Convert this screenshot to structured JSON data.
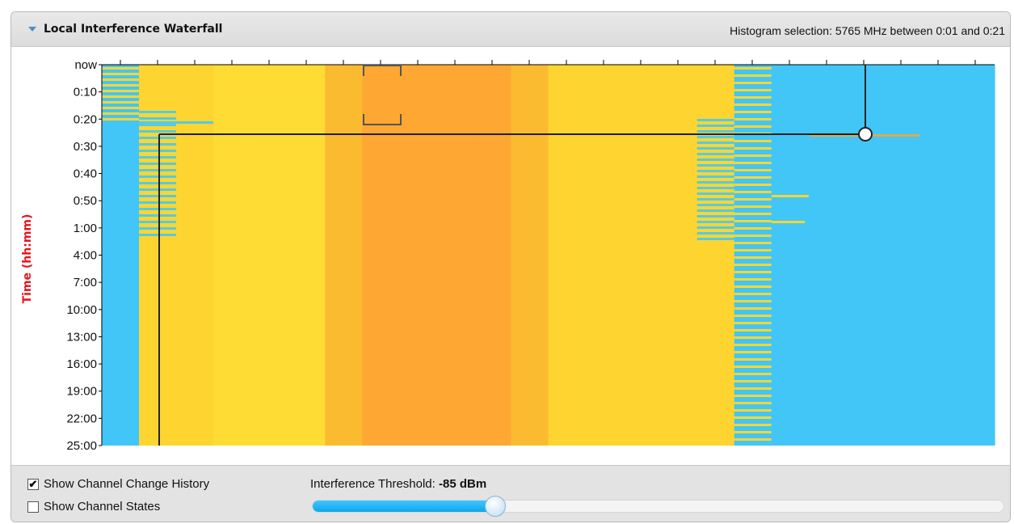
{
  "header": {
    "title": "Local Interference Waterfall",
    "histogram_selection": "Histogram selection: 5765 MHz between 0:01 and 0:21"
  },
  "chart_data": {
    "type": "heatmap",
    "ylabel": "Time (hh:mm)",
    "y_ticks": [
      "now",
      "0:10",
      "0:20",
      "0:30",
      "0:40",
      "0:50",
      "1:00",
      "4:00",
      "7:00",
      "10:00",
      "13:00",
      "16:00",
      "19:00",
      "22:00",
      "25:00"
    ],
    "colors": {
      "low": "#42c6f7",
      "low_alt": "#3cc2f5",
      "mid": "#fed530",
      "mid_alt": "#ffdc33",
      "high": "#ffa733",
      "high_alt": "#fbbb30",
      "stripe": "#52cbe6"
    },
    "channel_bands": [
      "low",
      "mid",
      "mid",
      "mid_alt",
      "mid_alt",
      "mid_alt",
      "high_alt",
      "high",
      "high",
      "high",
      "high",
      "high_alt",
      "mid",
      "mid",
      "mid",
      "mid",
      "mid",
      "low",
      "low",
      "low",
      "low",
      "low",
      "low",
      "low"
    ],
    "grid": false
  },
  "footer": {
    "show_channel_change_history": {
      "label": "Show Channel Change History",
      "checked": true,
      "mark": "✔"
    },
    "show_channel_states": {
      "label": "Show Channel States",
      "checked": false,
      "mark": ""
    },
    "threshold": {
      "label": "Interference Threshold: ",
      "value": "-85 dBm",
      "level_fraction": 0.254
    }
  }
}
